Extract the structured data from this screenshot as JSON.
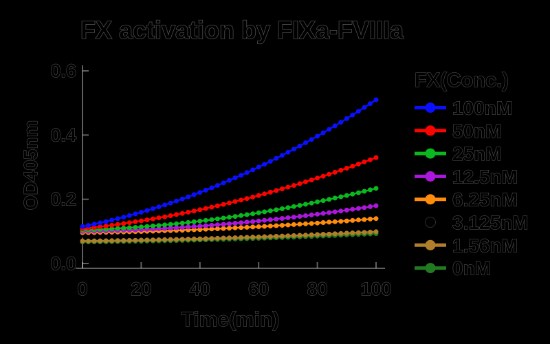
{
  "figure": {
    "background": "#000000"
  },
  "chart_data": {
    "type": "line",
    "title": "FX activation by FIXa-FVIIIa",
    "xlabel": "Time(min)",
    "ylabel": "OD405nm",
    "legend_title": "FX(Conc.)",
    "legend_position": "right",
    "grid": false,
    "marker": "circle",
    "xlim": [
      0,
      100
    ],
    "ylim": [
      0.0,
      0.6
    ],
    "x_ticks": [
      0,
      20,
      40,
      60,
      80,
      100
    ],
    "y_ticks": [
      0.0,
      0.2,
      0.4,
      0.6
    ],
    "x": [
      0,
      2,
      4,
      6,
      8,
      10,
      12,
      14,
      16,
      18,
      20,
      22,
      24,
      26,
      28,
      30,
      32,
      34,
      36,
      38,
      40,
      42,
      44,
      46,
      48,
      50,
      52,
      54,
      56,
      58,
      60,
      62,
      64,
      66,
      68,
      70,
      72,
      74,
      76,
      78,
      80,
      82,
      84,
      86,
      88,
      90,
      92,
      94,
      96,
      98,
      100
    ],
    "series": [
      {
        "name": "100nM",
        "color": "#0a10ff",
        "values": [
          0.115,
          0.1187,
          0.1225,
          0.1266,
          0.1308,
          0.1352,
          0.1397,
          0.1444,
          0.1493,
          0.1544,
          0.1596,
          0.165,
          0.1706,
          0.1763,
          0.1823,
          0.1884,
          0.1946,
          0.2011,
          0.2077,
          0.2144,
          0.2214,
          0.2285,
          0.2358,
          0.2433,
          0.2509,
          0.2588,
          0.2667,
          0.2749,
          0.2832,
          0.2917,
          0.3004,
          0.3092,
          0.3183,
          0.3275,
          0.3368,
          0.3464,
          0.3561,
          0.3659,
          0.376,
          0.3862,
          0.3966,
          0.4072,
          0.4179,
          0.4288,
          0.4399,
          0.4512,
          0.4626,
          0.4742,
          0.4859,
          0.4979,
          0.51
        ]
      },
      {
        "name": "50nM",
        "color": "#fb0400",
        "values": [
          0.108,
          0.11,
          0.1122,
          0.1144,
          0.1168,
          0.1192,
          0.1218,
          0.1244,
          0.1271,
          0.13,
          0.1329,
          0.1359,
          0.139,
          0.1422,
          0.1456,
          0.149,
          0.1525,
          0.1561,
          0.1598,
          0.1636,
          0.1675,
          0.1715,
          0.1756,
          0.1798,
          0.1841,
          0.1885,
          0.193,
          0.1976,
          0.2023,
          0.207,
          0.2119,
          0.2169,
          0.222,
          0.2271,
          0.2324,
          0.2378,
          0.2432,
          0.2488,
          0.2545,
          0.2602,
          0.2661,
          0.272,
          0.2781,
          0.2842,
          0.2905,
          0.2968,
          0.3033,
          0.3098,
          0.3164,
          0.3232,
          0.33
        ]
      },
      {
        "name": "25nM",
        "color": "#0ab81f",
        "values": [
          0.104,
          0.1046,
          0.1054,
          0.1062,
          0.107,
          0.108,
          0.109,
          0.1102,
          0.1114,
          0.1126,
          0.114,
          0.1154,
          0.117,
          0.1186,
          0.1202,
          0.122,
          0.1238,
          0.1258,
          0.1278,
          0.1298,
          0.132,
          0.1342,
          0.1366,
          0.139,
          0.1414,
          0.144,
          0.1466,
          0.1494,
          0.1522,
          0.155,
          0.158,
          0.161,
          0.1642,
          0.1674,
          0.1706,
          0.174,
          0.1774,
          0.181,
          0.1846,
          0.1882,
          0.192,
          0.1958,
          0.1998,
          0.2038,
          0.2078,
          0.212,
          0.2162,
          0.2206,
          0.225,
          0.2294,
          0.234
        ]
      },
      {
        "name": "12.5nM",
        "color": "#ab17dd",
        "values": [
          0.1,
          0.1003,
          0.1007,
          0.1011,
          0.1016,
          0.1022,
          0.1027,
          0.1034,
          0.1041,
          0.1048,
          0.1056,
          0.1064,
          0.1073,
          0.1083,
          0.1093,
          0.1104,
          0.1115,
          0.1126,
          0.1138,
          0.1151,
          0.1164,
          0.1178,
          0.1192,
          0.1207,
          0.1222,
          0.1238,
          0.1254,
          0.1271,
          0.1288,
          0.1306,
          0.1324,
          0.1343,
          0.1362,
          0.1382,
          0.1403,
          0.1424,
          0.1445,
          0.1467,
          0.1489,
          0.1512,
          0.1536,
          0.156,
          0.1585,
          0.161,
          0.1635,
          0.1662,
          0.1688,
          0.1715,
          0.1743,
          0.1771,
          0.18
        ]
      },
      {
        "name": "6.25nM",
        "color": "#ff8c0a",
        "values": [
          0.096,
          0.0963,
          0.0965,
          0.0968,
          0.0972,
          0.0975,
          0.0979,
          0.0983,
          0.0987,
          0.0992,
          0.0997,
          0.1002,
          0.1007,
          0.1013,
          0.1019,
          0.1025,
          0.1031,
          0.1038,
          0.1045,
          0.1052,
          0.1059,
          0.1067,
          0.1075,
          0.1083,
          0.1091,
          0.11,
          0.1109,
          0.1118,
          0.1128,
          0.1137,
          0.1147,
          0.1157,
          0.1168,
          0.1179,
          0.119,
          0.1201,
          0.1212,
          0.1224,
          0.1236,
          0.1248,
          0.1261,
          0.1274,
          0.1287,
          0.13,
          0.1313,
          0.1327,
          0.1341,
          0.1356,
          0.137,
          0.1385,
          0.14
        ]
      },
      {
        "name": "3.125nM",
        "color": "#000000",
        "values": [
          0.088,
          0.0882,
          0.0884,
          0.0887,
          0.0889,
          0.0892,
          0.0895,
          0.0898,
          0.0902,
          0.0905,
          0.0909,
          0.0913,
          0.0917,
          0.0921,
          0.0925,
          0.093,
          0.0934,
          0.0939,
          0.0945,
          0.095,
          0.0955,
          0.0961,
          0.0967,
          0.0973,
          0.0979,
          0.0985,
          0.0991,
          0.0998,
          0.1005,
          0.1012,
          0.1019,
          0.1027,
          0.1034,
          0.1042,
          0.105,
          0.1058,
          0.1066,
          0.1074,
          0.1083,
          0.1092,
          0.1101,
          0.111,
          0.1119,
          0.1129,
          0.1138,
          0.1148,
          0.1158,
          0.1168,
          0.1179,
          0.1189,
          0.12
        ]
      },
      {
        "name": "1.56nM",
        "color": "#b07f2a",
        "values": [
          0.07,
          0.0702,
          0.0704,
          0.0707,
          0.0709,
          0.0712,
          0.0715,
          0.0718,
          0.0721,
          0.0724,
          0.0728,
          0.0731,
          0.0735,
          0.0739,
          0.0743,
          0.0747,
          0.0751,
          0.0756,
          0.0761,
          0.0765,
          0.077,
          0.0776,
          0.0781,
          0.0786,
          0.0792,
          0.0798,
          0.0803,
          0.0809,
          0.0816,
          0.0822,
          0.0828,
          0.0835,
          0.0842,
          0.0849,
          0.0856,
          0.0863,
          0.0871,
          0.0878,
          0.0886,
          0.0894,
          0.0902,
          0.091,
          0.0918,
          0.0927,
          0.0935,
          0.0944,
          0.0953,
          0.0962,
          0.0971,
          0.098,
          0.099
        ]
      },
      {
        "name": "0nM",
        "color": "#217a21",
        "values": [
          0.067,
          0.0672,
          0.0674,
          0.0676,
          0.0678,
          0.0681,
          0.0683,
          0.0686,
          0.0689,
          0.0692,
          0.0695,
          0.0698,
          0.0701,
          0.0705,
          0.0709,
          0.0712,
          0.0716,
          0.072,
          0.0724,
          0.0729,
          0.0733,
          0.0738,
          0.0743,
          0.0747,
          0.0752,
          0.0758,
          0.0763,
          0.0768,
          0.0774,
          0.0779,
          0.0785,
          0.0791,
          0.0797,
          0.0803,
          0.081,
          0.0816,
          0.0823,
          0.083,
          0.0837,
          0.0844,
          0.0851,
          0.0858,
          0.0866,
          0.0873,
          0.0881,
          0.0889,
          0.0897,
          0.0905,
          0.0913,
          0.0921,
          0.093
        ]
      }
    ]
  },
  "style": {
    "text_color": "#000000",
    "halo_color": "#cdcdcd",
    "axis_color": "#bebebe"
  }
}
